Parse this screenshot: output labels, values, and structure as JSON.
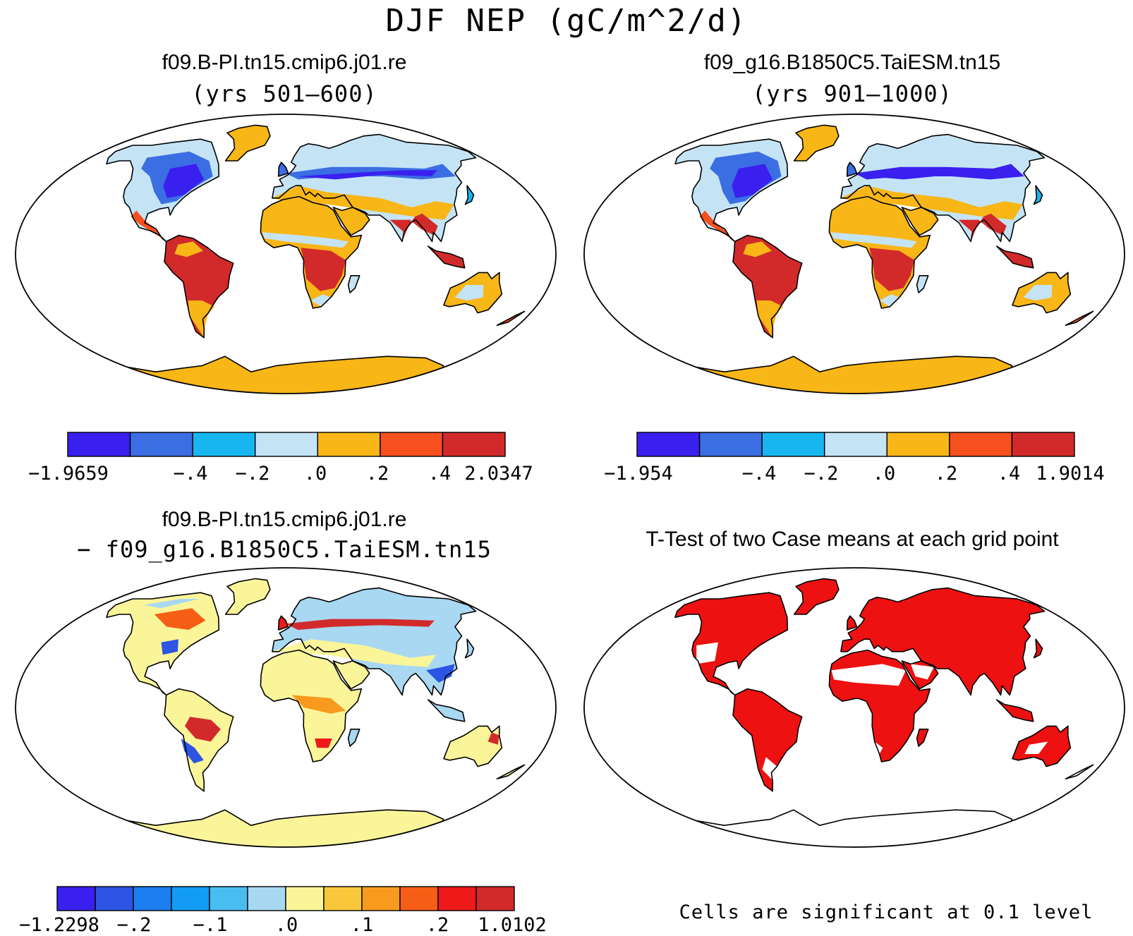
{
  "title": "DJF NEP (gC/m^2/d)",
  "panels": [
    {
      "id": "case1",
      "title": "f09.B-PI.tn15.cmip6.j01.re",
      "subtitle": "(yrs 501–600)",
      "colorbar": {
        "colors": [
          "#3a20ef",
          "#3b6ee3",
          "#17b6f1",
          "#c4e4f6",
          "#f8b617",
          "#f6501e",
          "#d22a2a"
        ],
        "labels": [
          "−1.9659",
          "−.4",
          "−.2",
          ".0",
          ".2",
          ".4",
          "2.0347"
        ]
      }
    },
    {
      "id": "case2",
      "title": "f09_g16.B1850C5.TaiESM.tn15",
      "subtitle": "(yrs 901–1000)",
      "colorbar": {
        "colors": [
          "#3a20ef",
          "#3b6ee3",
          "#17b6f1",
          "#c4e4f6",
          "#f8b617",
          "#f6501e",
          "#d22a2a"
        ],
        "labels": [
          "−1.954",
          "−.4",
          "−.2",
          ".0",
          ".2",
          ".4",
          "1.9014"
        ]
      }
    },
    {
      "id": "diff",
      "title": "f09.B-PI.tn15.cmip6.j01.re",
      "subtitle": "− f09_g16.B1850C5.TaiESM.tn15",
      "colorbar": {
        "colors": [
          "#3a20ef",
          "#2c55e4",
          "#1c7ef0",
          "#129cf5",
          "#48bdf0",
          "#a8d8f2",
          "#fbf59a",
          "#f9c73b",
          "#f79a1d",
          "#f65e16",
          "#ee1a1a",
          "#d22a2a"
        ],
        "labels": [
          "−1.2298",
          "−.2",
          "−.1",
          ".0",
          ".1",
          ".2",
          "1.0102"
        ]
      }
    },
    {
      "id": "ttest",
      "title": "T-Test of two Case means at each grid point",
      "note": "Cells are significant at 0.1 level",
      "significant_color": "#ee1111"
    }
  ]
}
